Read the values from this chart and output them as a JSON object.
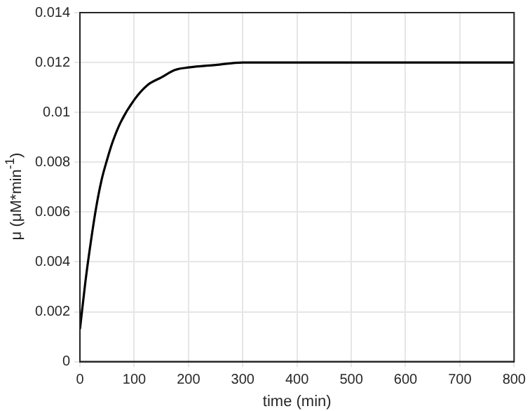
{
  "chart_data": {
    "type": "line",
    "xlabel": "time (min)",
    "ylabel": "μ (μM*min$^{-1}$)",
    "series": [
      {
        "color": "#000000",
        "x": [
          0,
          10,
          20,
          30,
          40,
          50,
          60,
          75,
          100,
          125,
          150,
          175,
          200,
          250,
          300,
          400,
          800
        ],
        "values": [
          0.0013,
          0.0032,
          0.0048,
          0.0062,
          0.0073,
          0.0081,
          0.0088,
          0.0096,
          0.0105,
          0.0111,
          0.0114,
          0.0117,
          0.0118,
          0.0119,
          0.012,
          0.012,
          0.012
        ]
      }
    ],
    "xlim": [
      0,
      800
    ],
    "xticks": [
      0,
      100,
      200,
      300,
      400,
      500,
      600,
      700,
      800
    ],
    "ylim": [
      0,
      0.014
    ],
    "yticks": [
      0,
      0.002,
      0.004,
      0.006,
      0.008,
      0.01,
      0.012,
      0.014
    ],
    "grid": true,
    "legend": false,
    "marker": "none",
    "line_style": "solid"
  }
}
